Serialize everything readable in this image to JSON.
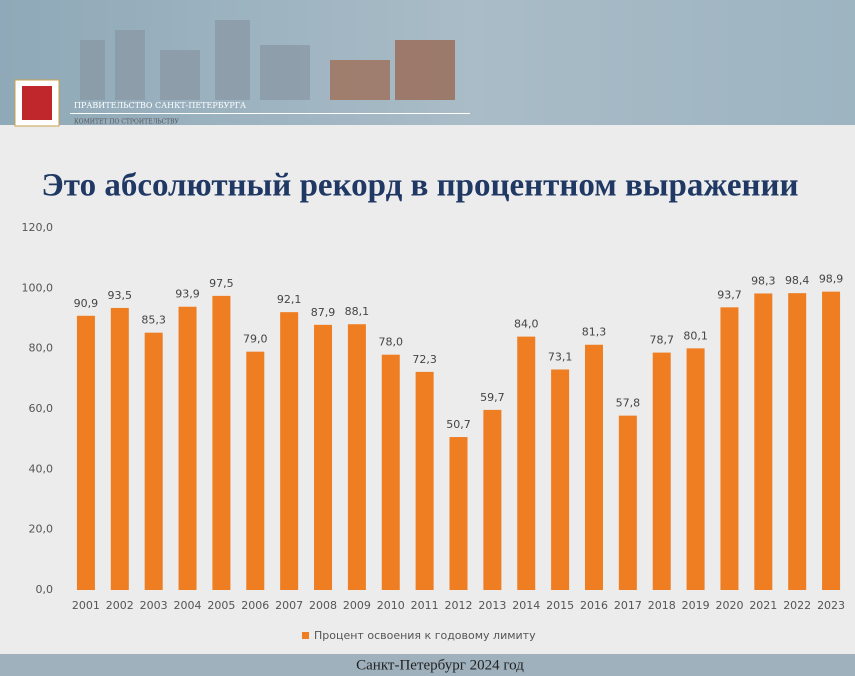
{
  "header": {
    "org": "ПРАВИТЕЛЬСТВО САНКТ-ПЕТЕРБУРГА",
    "committee": "КОМИТЕТ ПО СТРОИТЕЛЬСТВУ"
  },
  "chart_data": {
    "type": "bar",
    "title": "Это абсолютный рекорд в процентном выражении",
    "categories": [
      "2001",
      "2002",
      "2003",
      "2004",
      "2005",
      "2006",
      "2007",
      "2008",
      "2009",
      "2010",
      "2011",
      "2012",
      "2013",
      "2014",
      "2015",
      "2016",
      "2017",
      "2018",
      "2019",
      "2020",
      "2021",
      "2022",
      "2023"
    ],
    "series": [
      {
        "name": "Процент освоения к годовому лимиту",
        "color": "#ef7d22",
        "values": [
          90.9,
          93.5,
          85.3,
          93.9,
          97.5,
          79.0,
          92.1,
          87.9,
          88.1,
          78.0,
          72.3,
          50.7,
          59.7,
          84.0,
          73.1,
          81.3,
          57.8,
          78.7,
          80.1,
          93.7,
          98.3,
          98.4,
          98.9
        ],
        "value_labels": [
          "90,9",
          "93,5",
          "85,3",
          "93,9",
          "97,5",
          "79,0",
          "92,1",
          "87,9",
          "88,1",
          "78,0",
          "72,3",
          "50,7",
          "59,7",
          "84,0",
          "73,1",
          "81,3",
          "57,8",
          "78,7",
          "80,1",
          "93,7",
          "98,3",
          "98,4",
          "98,9"
        ]
      }
    ],
    "ylim": [
      0,
      120
    ],
    "yticks": [
      {
        "value": 0,
        "label": "0,0"
      },
      {
        "value": 20,
        "label": "20,0"
      },
      {
        "value": 40,
        "label": "40,0"
      },
      {
        "value": 60,
        "label": "60,0"
      },
      {
        "value": 80,
        "label": "80,0"
      },
      {
        "value": 100,
        "label": "100,0"
      },
      {
        "value": 120,
        "label": "120,0"
      }
    ],
    "grid": false,
    "legend": "bottom"
  },
  "footer": "Санкт-Петербург 2024 год"
}
